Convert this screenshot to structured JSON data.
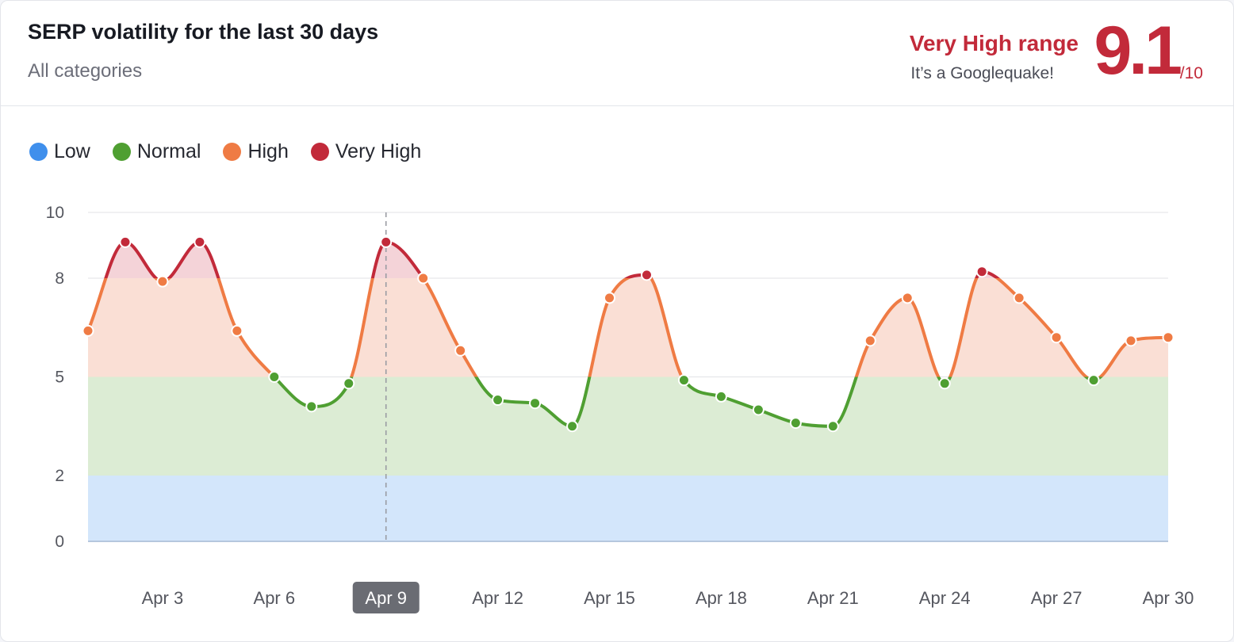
{
  "header": {
    "title": "SERP volatility for the last 30 days",
    "subtitle": "All categories",
    "range_label": "Very High range",
    "range_sub": "It’s a Googlequake!",
    "score": "9.1",
    "score_max": "/10"
  },
  "legend": [
    {
      "label": "Low",
      "color": "#3f8fec"
    },
    {
      "label": "Normal",
      "color": "#4f9f32"
    },
    {
      "label": "High",
      "color": "#ef7b44"
    },
    {
      "label": "Very High",
      "color": "#c22a3a"
    }
  ],
  "colors": {
    "low_band": "#d3e6fb",
    "normal_band": "#dcecd4",
    "high_band": "#fadfd5",
    "veryhigh_band": "#f4d3d8",
    "grid": "#e6e7ea",
    "axis": "#b5c7dd",
    "highlight_tag_bg": "#6a6c73"
  },
  "chart_data": {
    "type": "line",
    "ylim": [
      0,
      10
    ],
    "yticks": [
      "0",
      "2",
      "5",
      "8",
      "10"
    ],
    "yticks_values": [
      0,
      2,
      5,
      8,
      10
    ],
    "bands": [
      {
        "name": "Low",
        "from": 0,
        "to": 2
      },
      {
        "name": "Normal",
        "from": 2,
        "to": 5
      },
      {
        "name": "High",
        "from": 5,
        "to": 8
      },
      {
        "name": "Very High",
        "from": 8,
        "to": 10
      }
    ],
    "x_ticks": [
      "Apr 3",
      "Apr 6",
      "Apr 9",
      "Apr 12",
      "Apr 15",
      "Apr 18",
      "Apr 21",
      "Apr 24",
      "Apr 27",
      "Apr 30"
    ],
    "x_ticks_day": [
      3,
      6,
      9,
      12,
      15,
      18,
      21,
      24,
      27,
      30
    ],
    "highlight_day": 9,
    "days": [
      1,
      2,
      3,
      4,
      5,
      6,
      7,
      8,
      9,
      10,
      11,
      12,
      13,
      14,
      15,
      16,
      17,
      18,
      19,
      20,
      21,
      22,
      23,
      24,
      25,
      26,
      27,
      28,
      29,
      30
    ],
    "values": [
      6.4,
      9.1,
      7.9,
      9.1,
      6.4,
      5.0,
      4.1,
      4.8,
      9.1,
      8.0,
      5.8,
      4.3,
      4.2,
      3.5,
      7.4,
      8.1,
      4.9,
      4.4,
      4.0,
      3.6,
      3.5,
      6.1,
      7.4,
      4.8,
      8.2,
      7.4,
      6.2,
      4.9,
      6.1,
      6.2
    ]
  }
}
